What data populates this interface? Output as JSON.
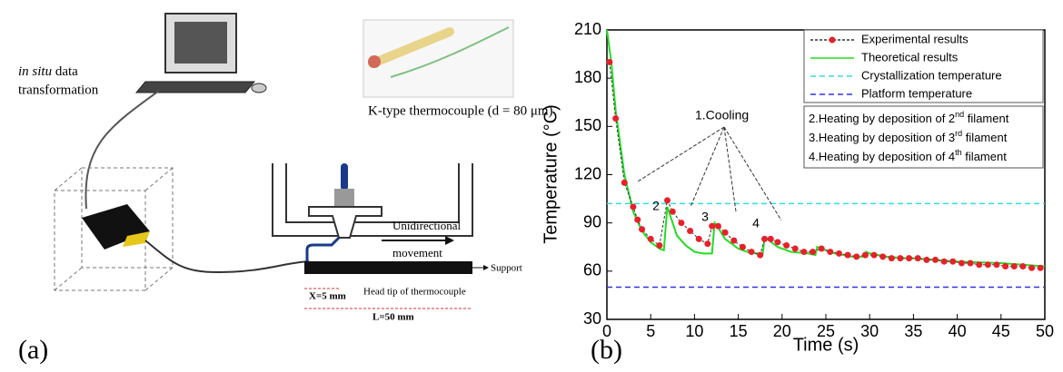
{
  "diagram": {
    "insitu": {
      "italic": "in situ",
      "rest": " data",
      "line2": "transformation"
    },
    "thermocouple": "K-type thermocouple (d = 80 μm)",
    "movement": {
      "line1": "Unidirectional",
      "line2": "movement"
    },
    "support": "Support",
    "x_label": "X=5 mm",
    "head_tip": "Head tip of thermocouple",
    "l_label": "L=50 mm",
    "panel": "(a)"
  },
  "chart_data": {
    "type": "line",
    "panel": "(b)",
    "xlabel": "Time (s)",
    "ylabel": "Temperature (°C)",
    "xlim": [
      0,
      50
    ],
    "ylim": [
      30,
      210
    ],
    "xticks": [
      0,
      5,
      10,
      15,
      20,
      25,
      30,
      35,
      40,
      45,
      50
    ],
    "yticks": [
      30,
      60,
      90,
      120,
      150,
      180,
      210
    ],
    "series": [
      {
        "name": "Experimental results",
        "color": "#e8202a",
        "line_color": "#333333",
        "x": [
          0.3,
          1,
          2,
          3,
          3.5,
          4,
          5,
          6,
          6.9,
          7.5,
          8.5,
          9.5,
          10.5,
          11.5,
          12,
          12.7,
          13.5,
          14.5,
          15.5,
          16.5,
          17.5,
          18,
          18.7,
          19.5,
          20.5,
          21.5,
          22.5,
          23.5,
          24.5,
          25.5,
          26.5,
          27.5,
          28.5,
          29.5,
          30.5,
          31.5,
          32.5,
          33.5,
          34.5,
          35.5,
          36.5,
          37.5,
          38.5,
          39.5,
          40.5,
          41.5,
          42.5,
          43.5,
          44.5,
          45.5,
          46.5,
          47.5,
          48.5,
          49.5
        ],
        "values": [
          190,
          155,
          115,
          100,
          92,
          86,
          80,
          76,
          104,
          97,
          90,
          85,
          80,
          77,
          88,
          88,
          84,
          79,
          75,
          72,
          70,
          80,
          80,
          78,
          76,
          74,
          72,
          72,
          74,
          72,
          71,
          70,
          69,
          70,
          70,
          69,
          68,
          68,
          68,
          68,
          67,
          67,
          66,
          66,
          65,
          65,
          64,
          64,
          64,
          63,
          63,
          63,
          62,
          62
        ]
      },
      {
        "name": "Theoretical results",
        "color": "#22dd22",
        "x": [
          0,
          0.5,
          1,
          2,
          3,
          4,
          5,
          6,
          6.5,
          6.9,
          7.2,
          8,
          9,
          10,
          11,
          12,
          12.3,
          12.6,
          13.5,
          15,
          16,
          17,
          17.8,
          18,
          18.3,
          19.5,
          21,
          23,
          23.8,
          24,
          24.5,
          26,
          28,
          29.2,
          29.6,
          30,
          32,
          34,
          35,
          40,
          45,
          50
        ],
        "values": [
          210,
          190,
          160,
          120,
          97,
          85,
          78,
          74,
          73,
          100,
          95,
          82,
          76,
          72,
          71,
          71,
          90,
          88,
          80,
          74,
          72,
          71,
          71,
          81,
          80,
          75,
          72,
          71,
          70,
          75,
          74,
          71,
          69,
          69,
          72,
          71,
          69,
          68,
          68,
          66,
          65,
          63
        ]
      }
    ],
    "reference_lines": [
      {
        "name": "Crystallization temperature",
        "value": 102,
        "color": "#33dddd"
      },
      {
        "name": "Platform temperature",
        "value": 50,
        "color": "#3333dd"
      }
    ],
    "annotations": {
      "cooling": "1.Cooling",
      "markers": [
        "2",
        "3",
        "4"
      ],
      "heating": [
        {
          "prefix": "2.Heating by deposition of 2",
          "sup": "nd",
          "suffix": " filament"
        },
        {
          "prefix": "3.Heating by deposition of 3",
          "sup": "rd",
          "suffix": " filament"
        },
        {
          "prefix": "4.Heating by deposition of 4",
          "sup": "th",
          "suffix": " filament"
        }
      ]
    }
  }
}
